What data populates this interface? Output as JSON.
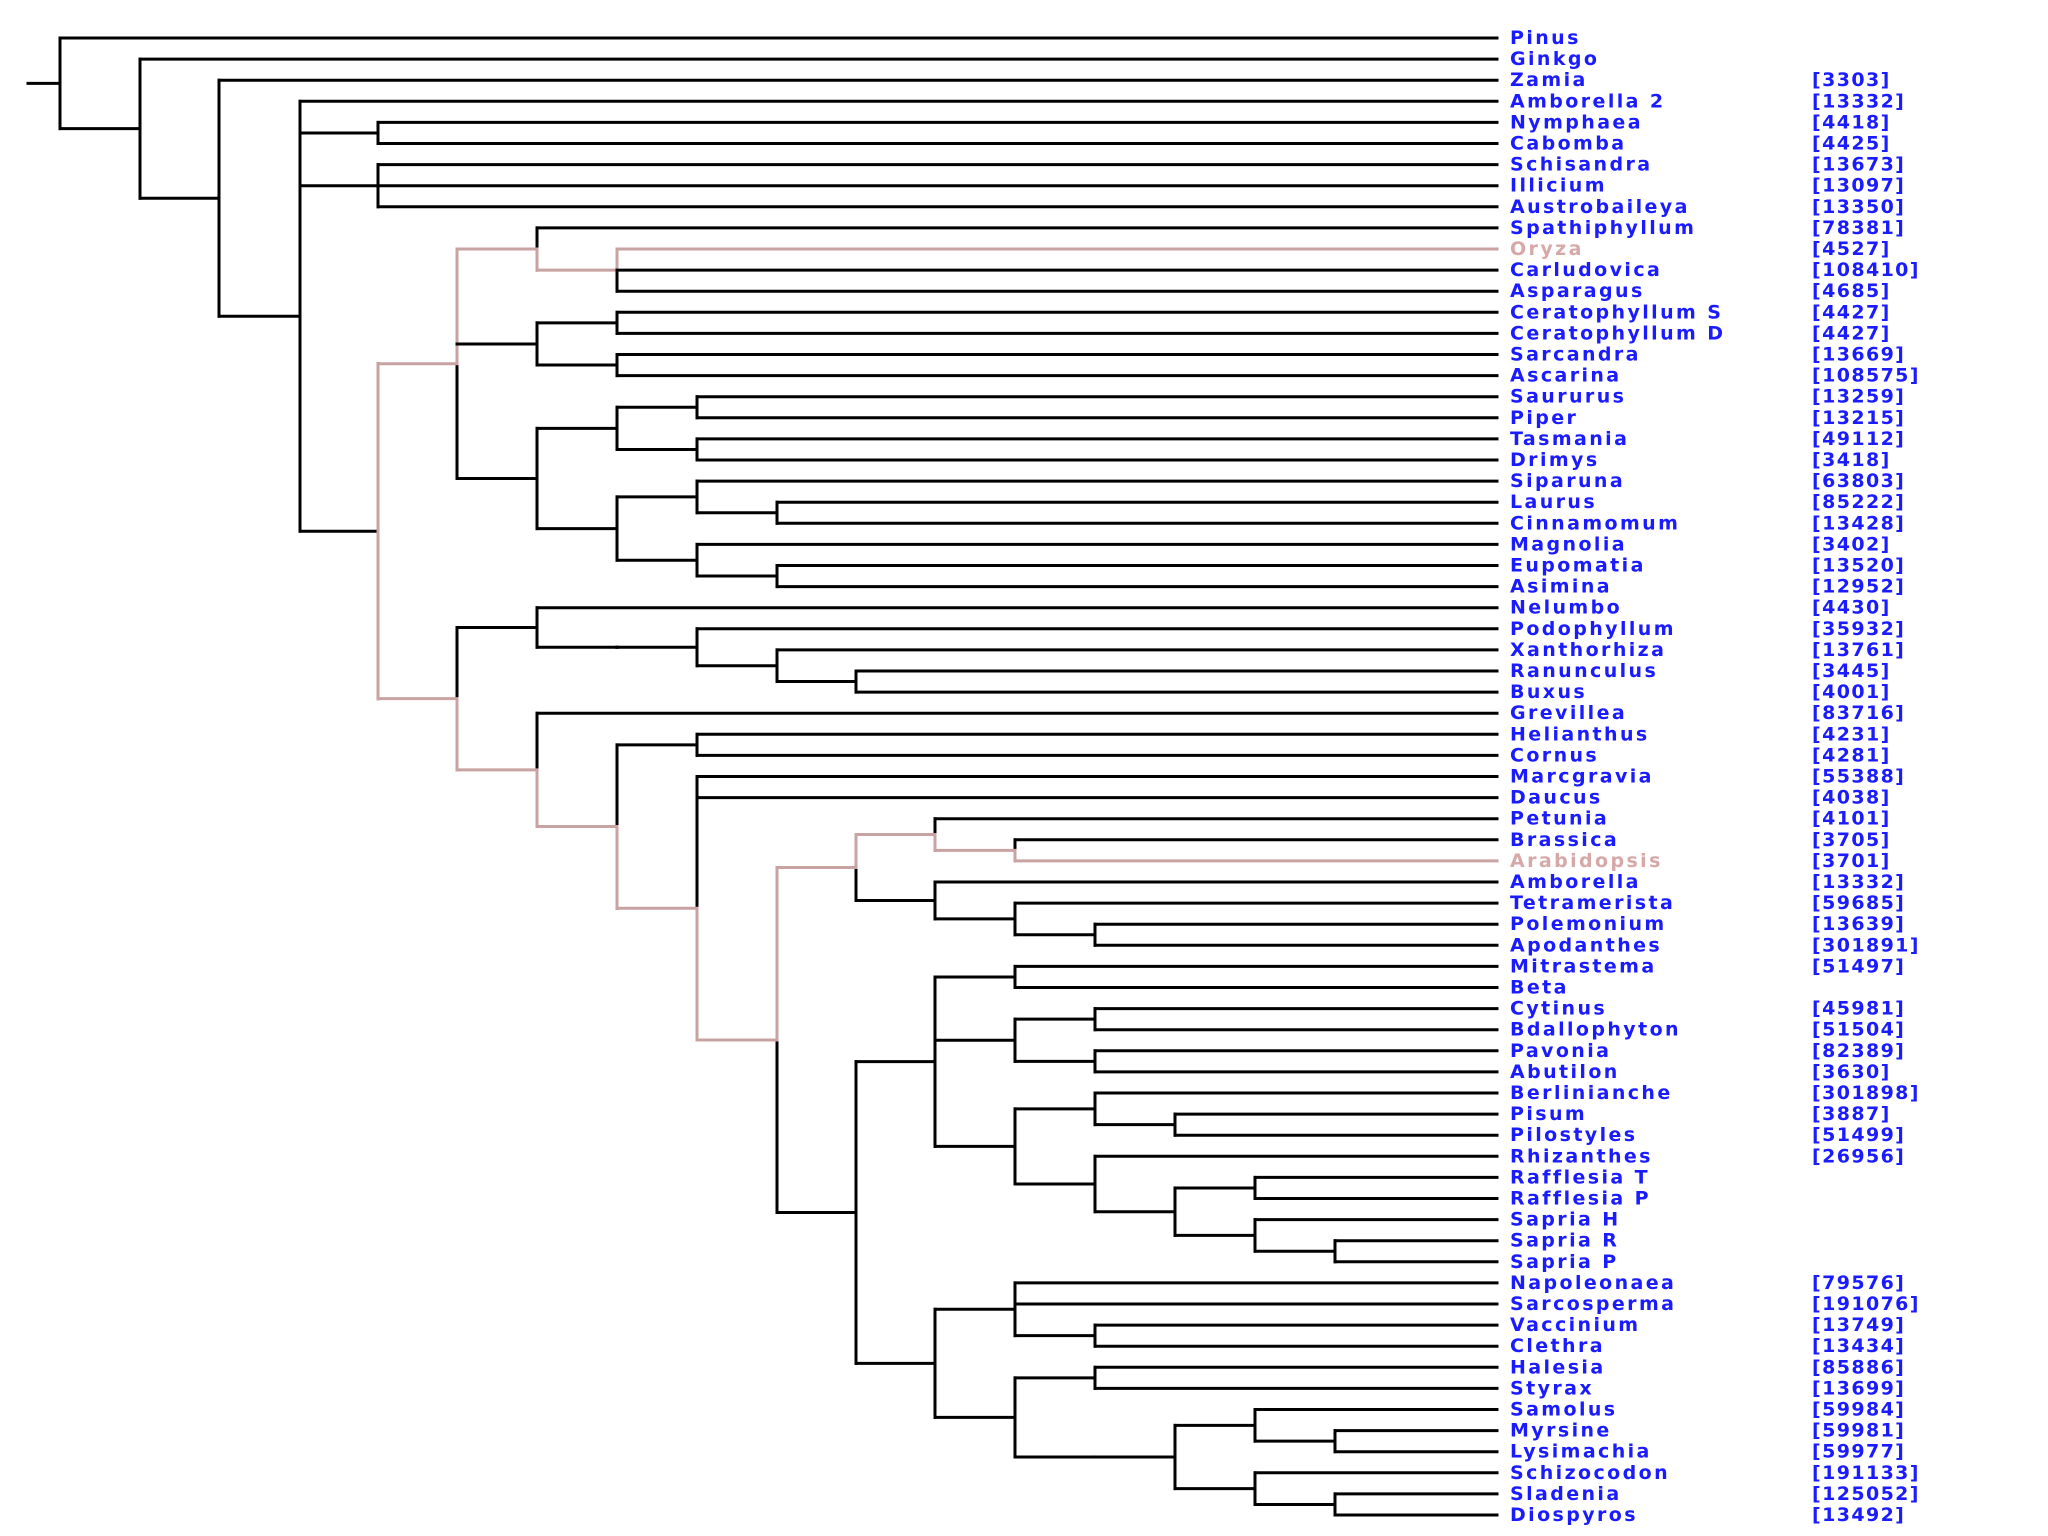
{
  "colors": {
    "label": "#1b1bff",
    "highlight_label": "#d6a8a8",
    "branch": "#000000",
    "highlight_branch": "#c9a2a2",
    "background": "#ffffff"
  },
  "taxa": [
    {
      "name": "Pinus",
      "accession": ""
    },
    {
      "name": "Ginkgo",
      "accession": ""
    },
    {
      "name": "Zamia",
      "accession": "[3303]"
    },
    {
      "name": "Amborella 2",
      "accession": "[13332]"
    },
    {
      "name": "Nymphaea",
      "accession": "[4418]"
    },
    {
      "name": "Cabomba",
      "accession": "[4425]"
    },
    {
      "name": "Schisandra",
      "accession": "[13673]"
    },
    {
      "name": "Illicium",
      "accession": "[13097]"
    },
    {
      "name": "Austrobaileya",
      "accession": "[13350]"
    },
    {
      "name": "Spathiphyllum",
      "accession": "[78381]"
    },
    {
      "name": "Oryza",
      "accession": "[4527]",
      "highlight": true
    },
    {
      "name": "Carludovica",
      "accession": "[108410]"
    },
    {
      "name": "Asparagus",
      "accession": "[4685]"
    },
    {
      "name": "Ceratophyllum S",
      "accession": "[4427]"
    },
    {
      "name": "Ceratophyllum D",
      "accession": "[4427]"
    },
    {
      "name": "Sarcandra",
      "accession": "[13669]"
    },
    {
      "name": "Ascarina",
      "accession": "[108575]"
    },
    {
      "name": "Saururus",
      "accession": "[13259]"
    },
    {
      "name": "Piper",
      "accession": "[13215]"
    },
    {
      "name": "Tasmania",
      "accession": "[49112]"
    },
    {
      "name": "Drimys",
      "accession": "[3418]"
    },
    {
      "name": "Siparuna",
      "accession": "[63803]"
    },
    {
      "name": "Laurus",
      "accession": "[85222]"
    },
    {
      "name": "Cinnamomum",
      "accession": "[13428]"
    },
    {
      "name": "Magnolia",
      "accession": "[3402]"
    },
    {
      "name": "Eupomatia",
      "accession": "[13520]"
    },
    {
      "name": "Asimina",
      "accession": "[12952]"
    },
    {
      "name": "Nelumbo",
      "accession": "[4430]"
    },
    {
      "name": "Podophyllum",
      "accession": "[35932]"
    },
    {
      "name": "Xanthorhiza",
      "accession": "[13761]"
    },
    {
      "name": "Ranunculus",
      "accession": "[3445]"
    },
    {
      "name": "Buxus",
      "accession": "[4001]"
    },
    {
      "name": "Grevillea",
      "accession": "[83716]"
    },
    {
      "name": "Helianthus",
      "accession": "[4231]"
    },
    {
      "name": "Cornus",
      "accession": "[4281]"
    },
    {
      "name": "Marcgravia",
      "accession": "[55388]"
    },
    {
      "name": "Daucus",
      "accession": "[4038]"
    },
    {
      "name": "Petunia",
      "accession": "[4101]"
    },
    {
      "name": "Brassica",
      "accession": "[3705]"
    },
    {
      "name": "Arabidopsis",
      "accession": "[3701]",
      "highlight": true
    },
    {
      "name": "Amborella",
      "accession": "[13332]"
    },
    {
      "name": "Tetramerista",
      "accession": "[59685]"
    },
    {
      "name": "Polemonium",
      "accession": "[13639]"
    },
    {
      "name": "Apodanthes",
      "accession": "[301891]"
    },
    {
      "name": "Mitrastema",
      "accession": "[51497]"
    },
    {
      "name": "Beta",
      "accession": ""
    },
    {
      "name": "Cytinus",
      "accession": "[45981]"
    },
    {
      "name": "Bdallophyton",
      "accession": "[51504]"
    },
    {
      "name": "Pavonia",
      "accession": "[82389]"
    },
    {
      "name": "Abutilon",
      "accession": "[3630]"
    },
    {
      "name": "Berlinianche",
      "accession": "[301898]"
    },
    {
      "name": "Pisum",
      "accession": "[3887]"
    },
    {
      "name": "Pilostyles",
      "accession": "[51499]"
    },
    {
      "name": "Rhizanthes",
      "accession": "[26956]"
    },
    {
      "name": "Rafflesia T",
      "accession": ""
    },
    {
      "name": "Rafflesia P",
      "accession": ""
    },
    {
      "name": "Sapria H",
      "accession": ""
    },
    {
      "name": "Sapria R",
      "accession": ""
    },
    {
      "name": "Sapria P",
      "accession": ""
    },
    {
      "name": "Napoleonaea",
      "accession": "[79576]"
    },
    {
      "name": "Sarcosperma",
      "accession": "[191076]"
    },
    {
      "name": "Vaccinium",
      "accession": "[13749]"
    },
    {
      "name": "Clethra",
      "accession": "[13434]"
    },
    {
      "name": "Halesia",
      "accession": "[85886]"
    },
    {
      "name": "Styrax",
      "accession": "[13699]"
    },
    {
      "name": "Samolus",
      "accession": "[59984]"
    },
    {
      "name": "Myrsine",
      "accession": "[59981]"
    },
    {
      "name": "Lysimachia",
      "accession": "[59977]"
    },
    {
      "name": "Schizocodon",
      "accession": "[191133]"
    },
    {
      "name": "Sladenia",
      "accession": "[125052]"
    },
    {
      "name": "Diospyros",
      "accession": "[13492]"
    }
  ],
  "tree_newick": "(Pinus,(Ginkgo,(Zamia,(Amborella 2,(Nymphaea,Cabomba),(Schisandra,Illicium,Austrobaileya),(((Spathiphyllum,(Oryza,Carludovica,Asparagus)),((Ceratophyllum S,Ceratophyllum D),(Sarcandra,Ascarina)),(((Saururus,Piper),(Tasmania,Drimys)),((Siparuna,(Laurus,Cinnamomum)),(Magnolia,(Eupomatia,Asimina))))),((Nelumbo,((Podophyllum,(Xanthorhiza,(Ranunculus,Buxus))))),(Grevillea,((Helianthus,Cornus),(Marcgravia,Daucus,(((Petunia,(Brassica,Arabidopsis)),(Amborella,(Tetramerista,(Polemonium,Apodanthes)))),(((Mitrastema,Beta),((Cytinus,Bdallophyton),(Pavonia,Abutilon)),((Berlinianche,(Pisum,Pilostyles)),(Rhizanthes,((Rafflesia T,Rafflesia P),(Sapria H,(Sapria R,Sapria P)))))),((Napoleonaea,Sarcosperma,(Vaccinium,Clethra)),((Halesia,Styrax),(((Samolus,(Myrsine,Lysimachia)),(Schizocodon,(Sladenia,Diospyros))))))))))))))))))"
}
